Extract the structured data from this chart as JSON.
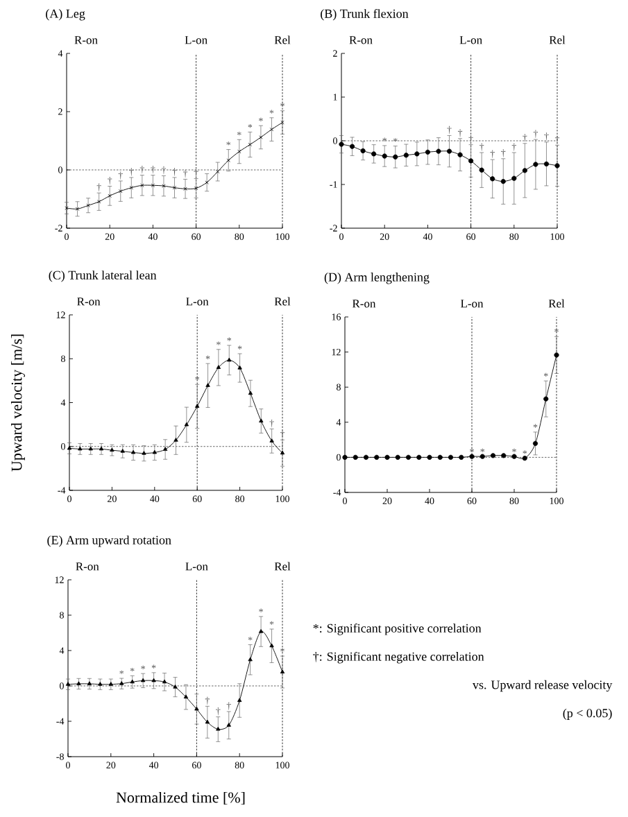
{
  "chart_data": [
    {
      "type": "line",
      "title": "(A) Leg",
      "color": "#000000",
      "marker": "cross",
      "line_style": "solid",
      "x": [
        0,
        5,
        10,
        15,
        20,
        25,
        30,
        35,
        40,
        45,
        50,
        55,
        60,
        65,
        70,
        75,
        80,
        85,
        90,
        95,
        100
      ],
      "values": [
        -1.31,
        -1.34,
        -1.22,
        -1.09,
        -0.89,
        -0.73,
        -0.61,
        -0.53,
        -0.53,
        -0.55,
        -0.61,
        -0.65,
        -0.63,
        -0.43,
        -0.06,
        0.33,
        0.63,
        0.87,
        1.12,
        1.39,
        1.63
      ],
      "errors": [
        0.2,
        0.25,
        0.25,
        0.3,
        0.33,
        0.35,
        0.35,
        0.35,
        0.35,
        0.35,
        0.35,
        0.33,
        0.33,
        0.3,
        0.32,
        0.37,
        0.41,
        0.43,
        0.4,
        0.4,
        0.4
      ],
      "xlim": [
        0,
        100
      ],
      "ylim": [
        -2,
        4
      ],
      "xticks": [
        0,
        20,
        40,
        60,
        80,
        100
      ],
      "yticks": [
        -2,
        0,
        2,
        4
      ],
      "ref_lines": [
        {
          "axis": "x",
          "value": 60,
          "label": "L-on",
          "line_style": "dashed"
        },
        {
          "axis": "x",
          "value": 100,
          "label": "Rel",
          "line_style": "dashed"
        },
        {
          "axis": "y",
          "value": 0,
          "line_style": "dashed"
        }
      ],
      "annotations": [
        "R-on",
        {
          "text": "†",
          "x": 15,
          "y": -1.09
        },
        {
          "text": "†",
          "x": 20,
          "y": -0.89
        },
        {
          "text": "†",
          "x": 25,
          "y": -0.73
        },
        {
          "text": "†",
          "x": 30,
          "y": -0.61
        },
        {
          "text": "†",
          "x": 35,
          "y": -0.53
        },
        {
          "text": "†",
          "x": 40,
          "y": -0.53
        },
        {
          "text": "†",
          "x": 45,
          "y": -0.55
        },
        {
          "text": "†",
          "x": 50,
          "y": -0.61
        },
        {
          "text": "†",
          "x": 55,
          "y": -0.65
        },
        {
          "text": "†",
          "x": 60,
          "y": -0.63
        },
        {
          "text": "*",
          "x": 75,
          "y": 0.33
        },
        {
          "text": "*",
          "x": 80,
          "y": 0.63
        },
        {
          "text": "*",
          "x": 85,
          "y": 0.87
        },
        {
          "text": "*",
          "x": 90,
          "y": 1.12
        },
        {
          "text": "*",
          "x": 95,
          "y": 1.39
        },
        {
          "text": "*",
          "x": 100,
          "y": 1.63
        }
      ]
    },
    {
      "type": "line",
      "title": "(B) Trunk flexion",
      "color": "#000000",
      "marker": "circle",
      "line_style": "solid",
      "x": [
        0,
        5,
        10,
        15,
        20,
        25,
        30,
        35,
        40,
        45,
        50,
        55,
        60,
        65,
        70,
        75,
        80,
        85,
        90,
        95,
        100
      ],
      "values": [
        -0.08,
        -0.13,
        -0.23,
        -0.3,
        -0.35,
        -0.37,
        -0.33,
        -0.3,
        -0.26,
        -0.24,
        -0.24,
        -0.32,
        -0.46,
        -0.67,
        -0.87,
        -0.93,
        -0.86,
        -0.68,
        -0.54,
        -0.53,
        -0.57
      ],
      "errors": [
        0.2,
        0.21,
        0.21,
        0.21,
        0.24,
        0.25,
        0.25,
        0.27,
        0.28,
        0.31,
        0.36,
        0.37,
        0.37,
        0.4,
        0.44,
        0.52,
        0.59,
        0.62,
        0.57,
        0.5,
        0.47
      ],
      "xlim": [
        0,
        100
      ],
      "ylim": [
        -2,
        2
      ],
      "xticks": [
        0,
        20,
        40,
        60,
        80,
        100
      ],
      "yticks": [
        -2,
        -1,
        0,
        1,
        2
      ],
      "ref_lines": [
        {
          "axis": "x",
          "value": 60,
          "label": "L-on",
          "line_style": "dashed"
        },
        {
          "axis": "x",
          "value": 100,
          "label": "Rel",
          "line_style": "dashed"
        },
        {
          "axis": "y",
          "value": 0,
          "line_style": "dashed"
        }
      ],
      "annotations": [
        "R-on",
        {
          "text": "*",
          "x": 20,
          "y": -0.35
        },
        {
          "text": "*",
          "x": 25,
          "y": -0.37
        },
        {
          "text": "†",
          "x": 50,
          "y": -0.24
        },
        {
          "text": "†",
          "x": 55,
          "y": -0.32
        },
        {
          "text": "†",
          "x": 60,
          "y": -0.46
        },
        {
          "text": "†",
          "x": 65,
          "y": -0.67
        },
        {
          "text": "†",
          "x": 70,
          "y": -0.87
        },
        {
          "text": "†",
          "x": 75,
          "y": -0.93
        },
        {
          "text": "†",
          "x": 80,
          "y": -0.86
        },
        {
          "text": "†",
          "x": 85,
          "y": -0.68
        },
        {
          "text": "†",
          "x": 90,
          "y": -0.54
        },
        {
          "text": "†",
          "x": 95,
          "y": -0.53
        },
        {
          "text": "†",
          "x": 100,
          "y": -0.57
        }
      ]
    },
    {
      "type": "line",
      "title": "(C) Trunk lateral lean",
      "ylabel": "Upward velocity [m/s]",
      "color": "#000000",
      "marker": "triangle",
      "line_style": "solid",
      "x": [
        0,
        5,
        10,
        15,
        20,
        25,
        30,
        35,
        40,
        45,
        50,
        55,
        60,
        65,
        70,
        75,
        80,
        85,
        90,
        95,
        100
      ],
      "values": [
        -0.17,
        -0.23,
        -0.23,
        -0.23,
        -0.34,
        -0.44,
        -0.55,
        -0.63,
        -0.55,
        -0.27,
        0.57,
        1.98,
        3.66,
        5.56,
        7.2,
        7.87,
        7.16,
        4.84,
        2.32,
        0.5,
        -0.6
      ],
      "errors": [
        0.5,
        0.5,
        0.5,
        0.5,
        0.5,
        0.6,
        0.7,
        0.7,
        0.7,
        0.9,
        1.3,
        1.6,
        2.0,
        2.0,
        1.65,
        1.35,
        1.3,
        1.2,
        1.1,
        1.1,
        1.2
      ],
      "xlim": [
        0,
        100
      ],
      "ylim": [
        -4,
        12
      ],
      "xticks": [
        0,
        20,
        40,
        60,
        80,
        100
      ],
      "yticks": [
        -4,
        0,
        4,
        8,
        12
      ],
      "ref_lines": [
        {
          "axis": "x",
          "value": 60,
          "label": "L-on",
          "line_style": "dashed"
        },
        {
          "axis": "x",
          "value": 100,
          "label": "Rel",
          "line_style": "dashed"
        },
        {
          "axis": "y",
          "value": 0,
          "line_style": "dashed"
        }
      ],
      "annotations": [
        "R-on",
        {
          "text": "*",
          "x": 60,
          "y": 3.66
        },
        {
          "text": "*",
          "x": 65,
          "y": 5.56
        },
        {
          "text": "*",
          "x": 70,
          "y": 7.2
        },
        {
          "text": "*",
          "x": 75,
          "y": 7.87
        },
        {
          "text": "*",
          "x": 80,
          "y": 7.16
        },
        {
          "text": "†",
          "x": 95,
          "y": 0.5
        },
        {
          "text": "†",
          "x": 100,
          "y": -0.6
        }
      ]
    },
    {
      "type": "line",
      "title": "(D) Arm lengthening",
      "color": "#000000",
      "marker": "circle",
      "line_style": "solid",
      "x": [
        0,
        5,
        10,
        15,
        20,
        25,
        30,
        35,
        40,
        45,
        50,
        55,
        60,
        65,
        70,
        75,
        80,
        85,
        90,
        95,
        100
      ],
      "values": [
        0,
        0,
        0,
        0,
        0,
        0,
        0,
        0,
        0,
        0,
        0,
        0,
        0.1,
        0.1,
        0.2,
        0.2,
        0.1,
        -0.1,
        1.58,
        6.66,
        11.66
      ],
      "errors": [
        null,
        null,
        null,
        null,
        null,
        null,
        null,
        null,
        null,
        null,
        null,
        null,
        null,
        null,
        null,
        null,
        null,
        null,
        1.3,
        2.05,
        2.1
      ],
      "xlim": [
        0,
        100
      ],
      "ylim": [
        -4,
        16
      ],
      "xticks": [
        0,
        20,
        40,
        60,
        80,
        100
      ],
      "yticks": [
        -4,
        0,
        4,
        8,
        12,
        16
      ],
      "ref_lines": [
        {
          "axis": "x",
          "value": 60,
          "label": "L-on",
          "line_style": "dashed"
        },
        {
          "axis": "x",
          "value": 100,
          "label": "Rel",
          "line_style": "dashed"
        },
        {
          "axis": "y",
          "value": 0,
          "line_style": "dashed"
        }
      ],
      "annotations": [
        "R-on",
        {
          "text": "*",
          "x": 60,
          "y": 0.1
        },
        {
          "text": "*",
          "x": 65,
          "y": 0.1
        },
        {
          "text": "*",
          "x": 80,
          "y": 0.1
        },
        {
          "text": "*",
          "x": 85,
          "y": -0.1
        },
        {
          "text": "*",
          "x": 90,
          "y": 1.58
        },
        {
          "text": "*",
          "x": 95,
          "y": 6.66
        },
        {
          "text": "*",
          "x": 100,
          "y": 11.66
        }
      ]
    },
    {
      "type": "line",
      "title": "(E) Arm upward rotation",
      "xlabel": "Normalized time [%]",
      "color": "#000000",
      "marker": "triangle",
      "line_style": "solid",
      "x": [
        0,
        5,
        10,
        15,
        20,
        25,
        30,
        35,
        40,
        45,
        50,
        55,
        60,
        65,
        70,
        75,
        80,
        85,
        90,
        95,
        100
      ],
      "values": [
        0.18,
        0.24,
        0.24,
        0.18,
        0.18,
        0.26,
        0.45,
        0.6,
        0.6,
        0.45,
        -0.13,
        -1.26,
        -2.62,
        -4.1,
        -4.9,
        -4.45,
        -1.65,
        2.96,
        6.15,
        4.53,
        1.57
      ],
      "errors": [
        0.6,
        0.6,
        0.6,
        0.6,
        0.6,
        0.6,
        0.7,
        0.8,
        0.9,
        1.0,
        1.1,
        1.4,
        1.7,
        1.8,
        1.4,
        1.55,
        1.9,
        1.7,
        1.7,
        1.9,
        1.8
      ],
      "xlim": [
        0,
        100
      ],
      "ylim": [
        -8,
        12
      ],
      "xticks": [
        0,
        20,
        40,
        60,
        80,
        100
      ],
      "yticks": [
        -8,
        -4,
        0,
        4,
        8,
        12
      ],
      "ref_lines": [
        {
          "axis": "x",
          "value": 60,
          "label": "L-on",
          "line_style": "dashed"
        },
        {
          "axis": "x",
          "value": 100,
          "label": "Rel",
          "line_style": "dashed"
        },
        {
          "axis": "y",
          "value": 0,
          "line_style": "dashed"
        }
      ],
      "annotations": [
        "R-on",
        {
          "text": "*",
          "x": 25,
          "y": 0.26
        },
        {
          "text": "*",
          "x": 30,
          "y": 0.45
        },
        {
          "text": "*",
          "x": 35,
          "y": 0.6
        },
        {
          "text": "*",
          "x": 40,
          "y": 0.6
        },
        {
          "text": "†",
          "x": 65,
          "y": -4.1
        },
        {
          "text": "†",
          "x": 70,
          "y": -4.9
        },
        {
          "text": "†",
          "x": 75,
          "y": -4.45
        },
        {
          "text": "*",
          "x": 85,
          "y": 2.96
        },
        {
          "text": "*",
          "x": 90,
          "y": 6.15
        },
        {
          "text": "*",
          "x": 95,
          "y": 4.53
        },
        {
          "text": "*",
          "x": 100,
          "y": 1.57
        },
        "*: Significant positive correlation",
        "†: Significant negative correlation",
        "vs. Upward release velocity",
        "(p < 0.05)"
      ]
    }
  ]
}
